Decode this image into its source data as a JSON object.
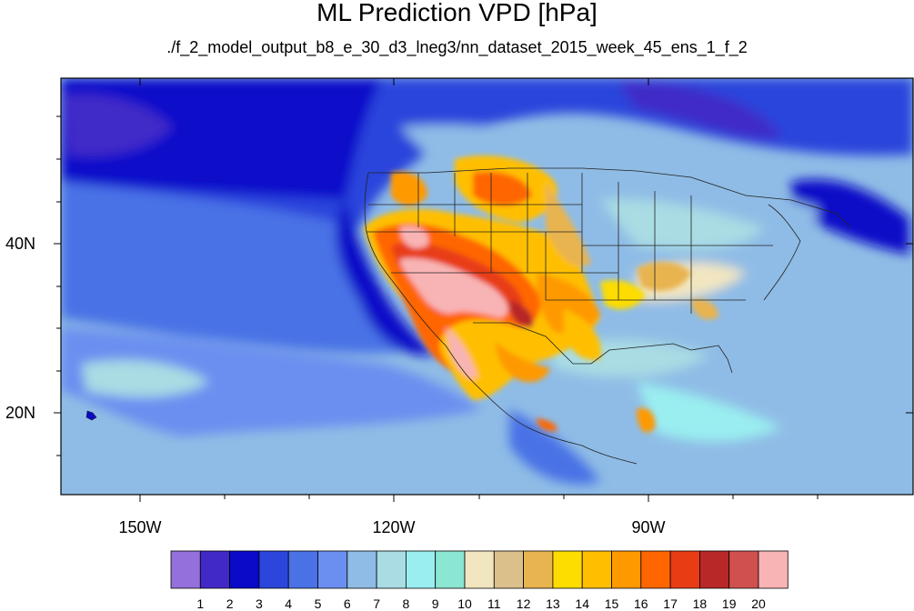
{
  "title": "ML Prediction VPD [hPa]",
  "subtitle": "./f_2_model_output_b8_e_30_d3_lneg3/nn_dataset_2015_week_45_ens_1_f_2",
  "axes": {
    "lon_labels": [
      "150W",
      "120W",
      "90W"
    ],
    "lat_labels": [
      "40N",
      "20N"
    ]
  },
  "colorbar": {
    "labels": [
      "1",
      "2",
      "3",
      "4",
      "5",
      "6",
      "7",
      "8",
      "9",
      "10",
      "11",
      "12",
      "13",
      "14",
      "15",
      "16",
      "17",
      "18",
      "19",
      "20"
    ],
    "colors": [
      "#9370db",
      "#4129c8",
      "#0a0ac8",
      "#2c45dc",
      "#4a72e6",
      "#6b8ff0",
      "#8fbce6",
      "#a9dce3",
      "#9aeef0",
      "#8be6d2",
      "#f2e6c0",
      "#dcc08c",
      "#e8b450",
      "#fddc00",
      "#ffbf00",
      "#ff9900",
      "#ff6600",
      "#e83c14",
      "#b82828",
      "#d05050",
      "#f8b4b4"
    ]
  },
  "chart_data": {
    "type": "heatmap",
    "title": "ML Prediction VPD [hPa]",
    "variable": "VPD",
    "units": "hPa",
    "lon_range": [
      -160,
      -62
    ],
    "lat_range": [
      10,
      60
    ],
    "levels": [
      1,
      2,
      3,
      4,
      5,
      6,
      7,
      8,
      9,
      10,
      11,
      12,
      13,
      14,
      15,
      16,
      17,
      18,
      19,
      20
    ]
  }
}
